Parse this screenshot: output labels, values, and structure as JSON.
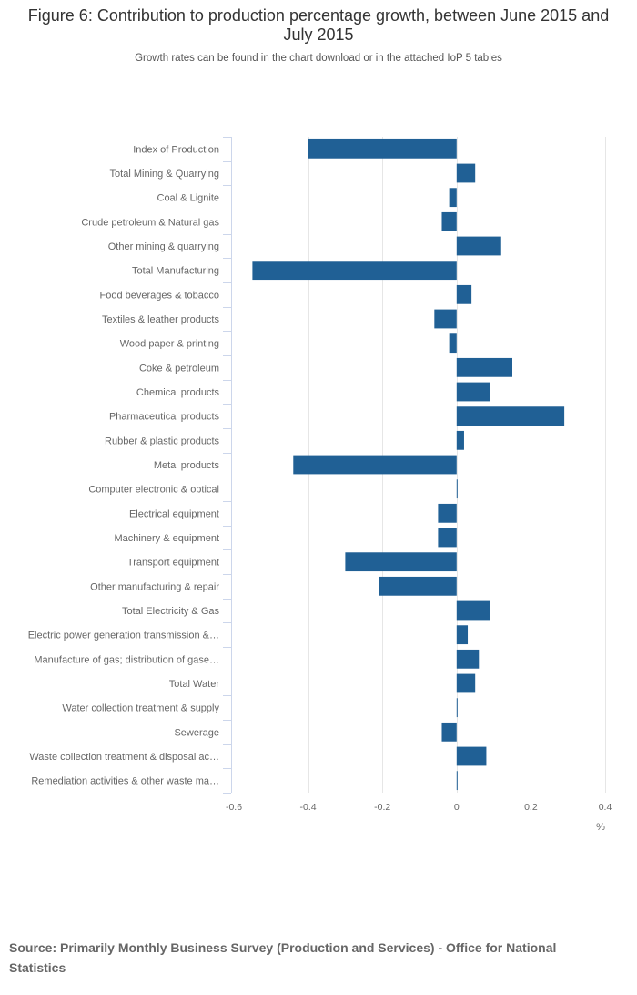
{
  "title": "Figure 6: Contribution to production percentage growth, between June 2015 and July 2015",
  "subtitle": "Growth rates can be found in the chart download or in the attached IoP 5 tables",
  "source": "Source: Primarily Monthly Business Survey (Production and Services) - Office for National Statistics",
  "colors": {
    "bar": "#206095",
    "grid": "#e6e6e6",
    "axis": "#ccd6eb",
    "text": "#666666"
  },
  "chart_data": {
    "type": "bar",
    "orientation": "horizontal",
    "title": "Figure 6: Contribution to production percentage growth, between June 2015 and July 2015",
    "subtitle": "Growth rates can be found in the chart download or in the attached IoP 5 tables",
    "xlabel": "%",
    "ylabel": "",
    "xlim": [
      -0.6,
      0.4
    ],
    "xticks": [
      -0.6,
      -0.4,
      -0.2,
      0,
      0.2,
      0.4
    ],
    "xtick_labels": [
      "-0.6",
      "-0.4",
      "-0.2",
      "0",
      "0.2",
      "0.4"
    ],
    "grid": true,
    "legend": false,
    "categories": [
      "Index of Production",
      "Total Mining & Quarrying",
      "Coal & Lignite",
      "Crude petroleum & Natural gas",
      "Other mining & quarrying",
      "Total Manufacturing",
      "Food beverages & tobacco",
      "Textiles & leather products",
      "Wood paper & printing",
      "Coke & petroleum",
      "Chemical products",
      "Pharmaceutical products",
      "Rubber & plastic products",
      "Metal products",
      "Computer electronic & optical",
      "Electrical equipment",
      "Machinery & equipment",
      "Transport equipment",
      "Other manufacturing & repair",
      "Total Electricity & Gas",
      "Electric power generation transmission &…",
      "Manufacture of gas; distribution of gase…",
      "Total Water",
      "Water collection treatment & supply",
      "Sewerage",
      "Waste collection treatment & disposal ac…",
      "Remediation activities & other waste ma…"
    ],
    "values": [
      -0.4,
      0.05,
      -0.02,
      -0.04,
      0.12,
      -0.55,
      0.04,
      -0.06,
      -0.02,
      0.15,
      0.09,
      0.29,
      0.02,
      -0.44,
      0.0,
      -0.05,
      -0.05,
      -0.3,
      -0.21,
      0.09,
      0.03,
      0.06,
      0.05,
      0.0,
      -0.04,
      0.08,
      0.0
    ]
  }
}
